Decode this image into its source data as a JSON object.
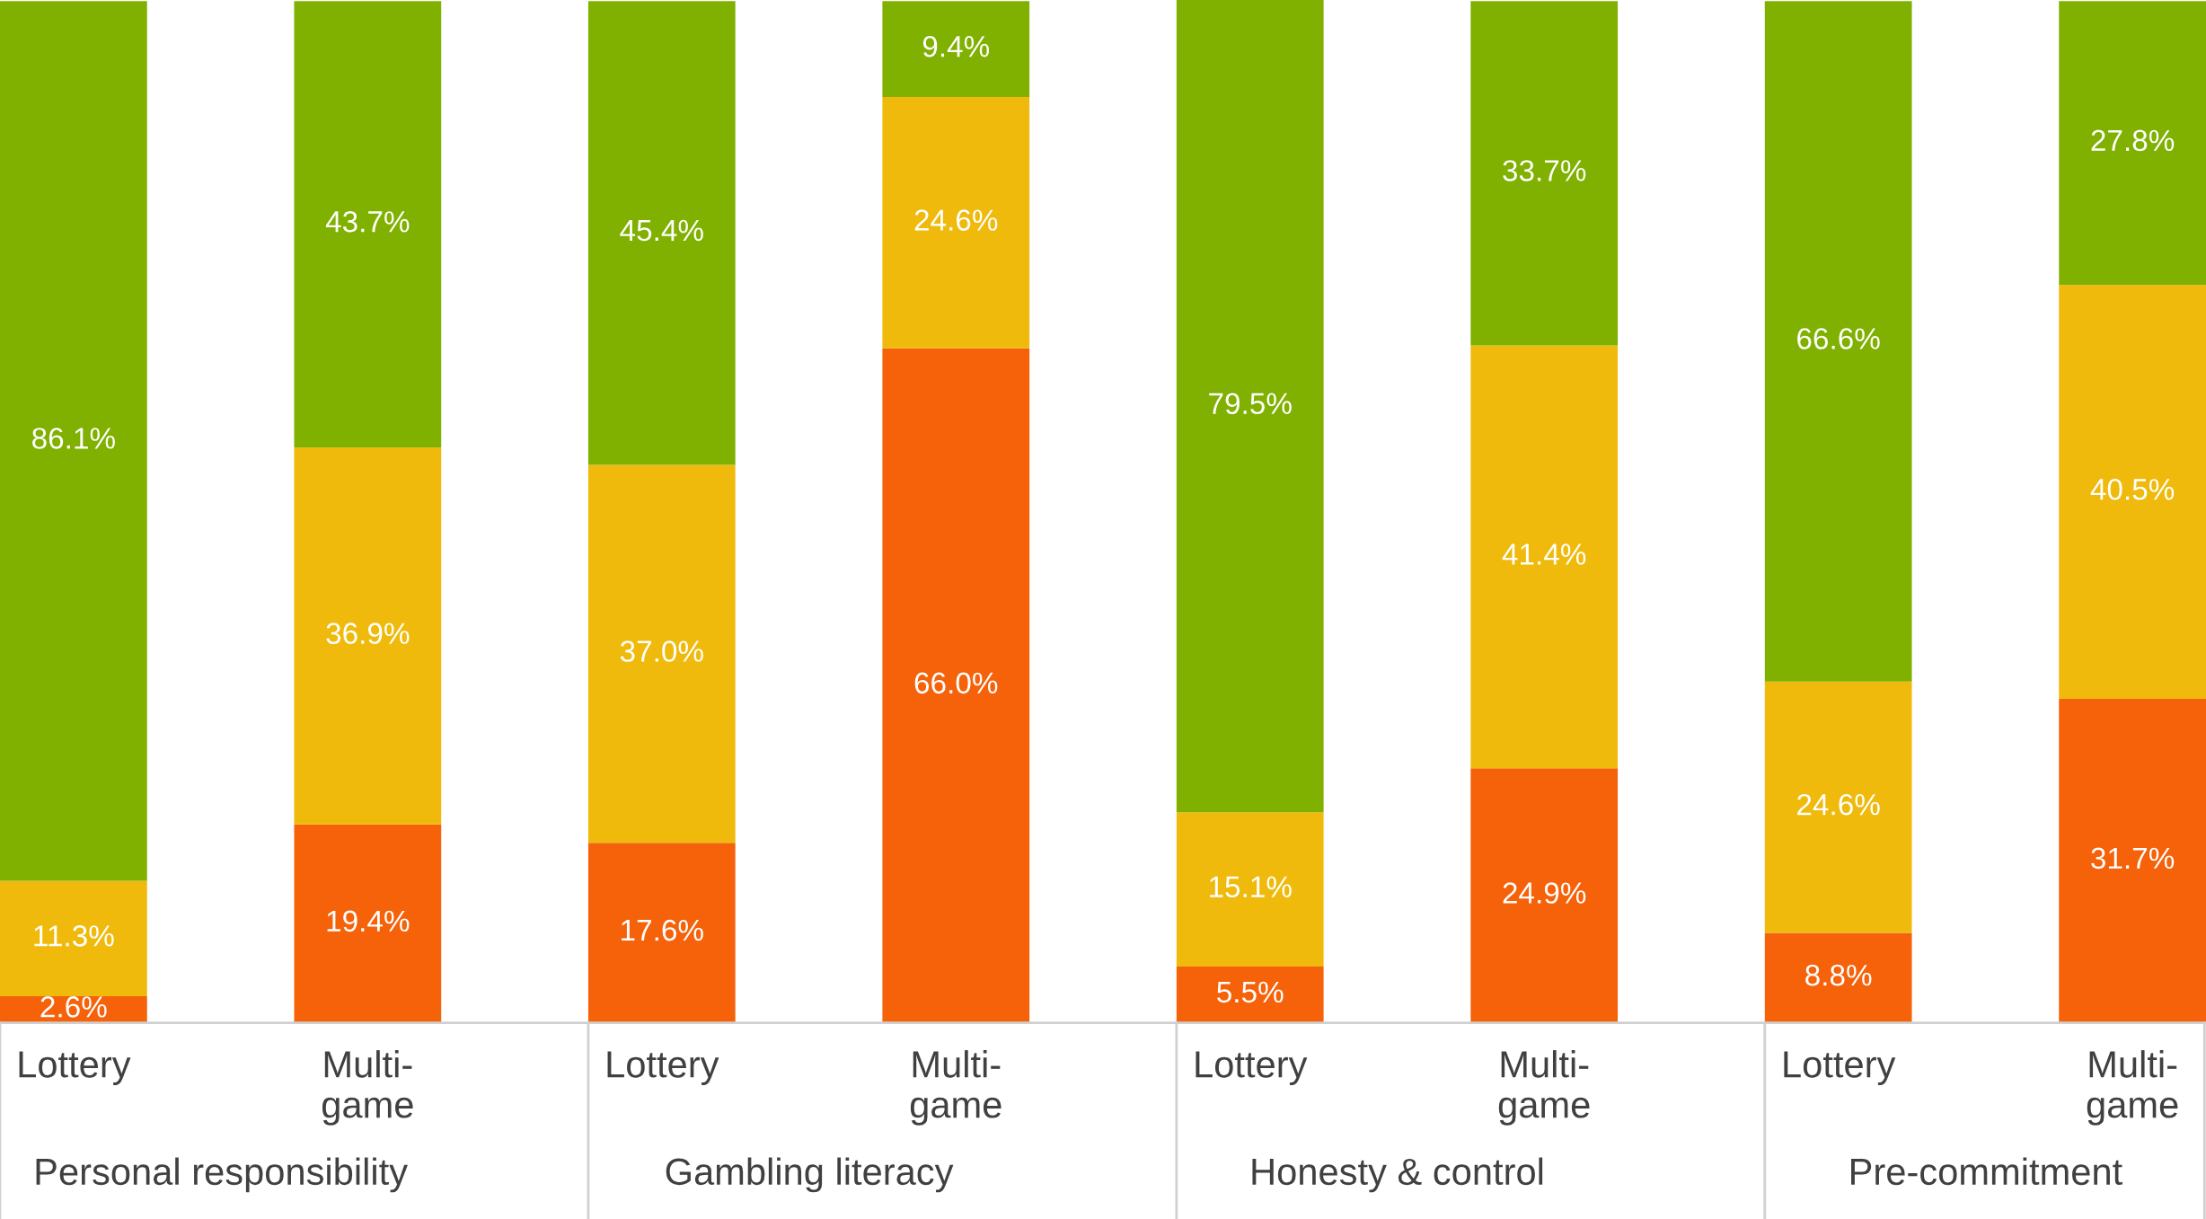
{
  "chart_data": {
    "type": "bar",
    "stacked": true,
    "grid": false,
    "legend": false,
    "categories": [
      "Lottery",
      "Multi-\ngame",
      "Lottery",
      "Multi-\ngame",
      "Lottery",
      "Multi-\ngame",
      "Lottery",
      "Multi-\ngame"
    ],
    "series": [
      {
        "color": "#f5620a",
        "values": [
          2.6,
          19.4,
          17.6,
          66.0,
          5.5,
          24.9,
          8.8,
          31.7
        ],
        "value_labels": [
          "2.6%",
          "19.4%",
          "17.6%",
          "66.0%",
          "5.5%",
          "24.9%",
          "8.8%",
          "31.7%"
        ]
      },
      {
        "color": "#efba0c",
        "values": [
          11.3,
          36.9,
          37.0,
          24.6,
          15.1,
          41.4,
          24.6,
          40.5
        ],
        "value_labels": [
          "11.3%",
          "36.9%",
          "37.0%",
          "24.6%",
          "15.1%",
          "41.4%",
          "24.6%",
          "40.5%"
        ]
      },
      {
        "color": "#80b000",
        "values": [
          86.1,
          43.7,
          45.4,
          9.4,
          79.5,
          33.7,
          66.6,
          27.8
        ],
        "value_labels": [
          "86.1%",
          "43.7%",
          "45.4%",
          "9.4%",
          "79.5%",
          "33.7%",
          "66.6%",
          "27.8%"
        ]
      }
    ],
    "annotations": [
      "Personal responsibility",
      "Gambling literacy",
      "Honesty & control",
      "Pre-commitment"
    ]
  }
}
